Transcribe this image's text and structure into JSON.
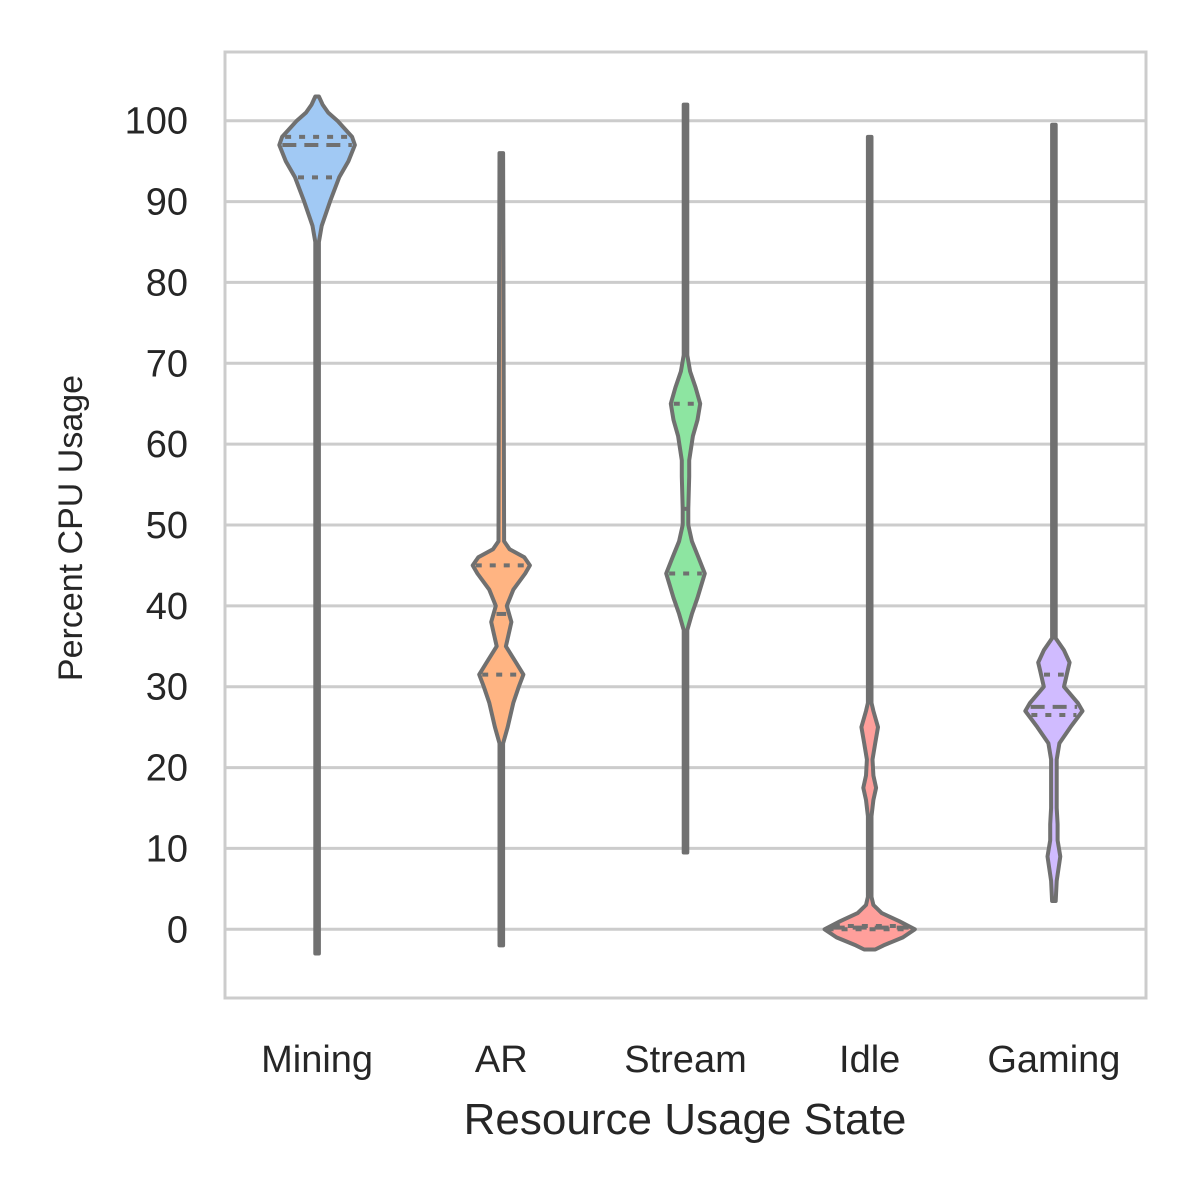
{
  "chart_data": {
    "type": "violin",
    "title": "",
    "xlabel": "Resource Usage State",
    "ylabel": "Percent CPU Usage",
    "ylim": [
      -8.5,
      108.5
    ],
    "yticks": [
      0,
      10,
      20,
      30,
      40,
      50,
      60,
      70,
      80,
      90,
      100
    ],
    "grid": "horizontal",
    "legend": "none",
    "inner": "quartile",
    "colors": {
      "Mining": "#a1c9f4",
      "AR": "#ffb482",
      "Stream": "#8de5a1",
      "Idle": "#ff9f9b",
      "Gaming": "#d0bbff",
      "outline": "#707070",
      "grid": "#cccccc"
    },
    "categories": [
      "Mining",
      "AR",
      "Stream",
      "Idle",
      "Gaming"
    ],
    "series": [
      {
        "category": "Mining",
        "range": [
          -3,
          103
        ],
        "quartiles": [
          93,
          97,
          98
        ],
        "density": [
          [
            -3,
            0.02
          ],
          [
            85,
            0.02
          ],
          [
            87,
            0.05
          ],
          [
            90,
            0.14
          ],
          [
            93,
            0.24
          ],
          [
            95,
            0.34
          ],
          [
            97,
            0.41
          ],
          [
            98,
            0.38
          ],
          [
            100,
            0.22
          ],
          [
            101,
            0.12
          ],
          [
            102,
            0.06
          ],
          [
            103,
            0.02
          ]
        ]
      },
      {
        "category": "AR",
        "range": [
          -2,
          96
        ],
        "quartiles": [
          31.5,
          39,
          45
        ],
        "density": [
          [
            -2,
            0.02
          ],
          [
            23,
            0.02
          ],
          [
            25,
            0.07
          ],
          [
            28,
            0.13
          ],
          [
            30,
            0.19
          ],
          [
            31.5,
            0.24
          ],
          [
            33,
            0.16
          ],
          [
            35,
            0.05
          ],
          [
            37,
            0.09
          ],
          [
            38,
            0.11
          ],
          [
            40,
            0.06
          ],
          [
            42,
            0.13
          ],
          [
            44,
            0.26
          ],
          [
            45,
            0.31
          ],
          [
            46,
            0.25
          ],
          [
            47,
            0.09
          ],
          [
            48,
            0.03
          ],
          [
            96,
            0.02
          ]
        ]
      },
      {
        "category": "Stream",
        "range": [
          9.5,
          102
        ],
        "quartiles": [
          44,
          52,
          65
        ],
        "density": [
          [
            9.5,
            0.02
          ],
          [
            37,
            0.02
          ],
          [
            39,
            0.07
          ],
          [
            41,
            0.13
          ],
          [
            44,
            0.21
          ],
          [
            46,
            0.14
          ],
          [
            48,
            0.07
          ],
          [
            50,
            0.03
          ],
          [
            52,
            0.03
          ],
          [
            56,
            0.04
          ],
          [
            58,
            0.04
          ],
          [
            61,
            0.08
          ],
          [
            63,
            0.13
          ],
          [
            65,
            0.16
          ],
          [
            67,
            0.11
          ],
          [
            69,
            0.05
          ],
          [
            71,
            0.02
          ],
          [
            102,
            0.02
          ]
        ]
      },
      {
        "category": "Idle",
        "range": [
          -2.5,
          98
        ],
        "quartiles": [
          0,
          0.2,
          0.4
        ],
        "density": [
          [
            -2.5,
            0.06
          ],
          [
            -2,
            0.15
          ],
          [
            -1,
            0.36
          ],
          [
            0,
            0.49
          ],
          [
            1,
            0.32
          ],
          [
            2,
            0.13
          ],
          [
            3,
            0.04
          ],
          [
            4,
            0.02
          ],
          [
            14,
            0.02
          ],
          [
            16,
            0.04
          ],
          [
            17.5,
            0.07
          ],
          [
            19,
            0.04
          ],
          [
            21,
            0.03
          ],
          [
            23,
            0.06
          ],
          [
            25,
            0.09
          ],
          [
            27,
            0.04
          ],
          [
            28,
            0.02
          ],
          [
            98,
            0.02
          ]
        ]
      },
      {
        "category": "Gaming",
        "range": [
          3.5,
          99.5
        ],
        "quartiles": [
          26.5,
          27.5,
          31.5
        ],
        "density": [
          [
            3.5,
            0.02
          ],
          [
            6,
            0.03
          ],
          [
            9,
            0.07
          ],
          [
            11,
            0.04
          ],
          [
            13,
            0.04
          ],
          [
            15,
            0.03
          ],
          [
            18,
            0.03
          ],
          [
            21,
            0.03
          ],
          [
            23,
            0.06
          ],
          [
            25,
            0.18
          ],
          [
            27,
            0.31
          ],
          [
            28,
            0.26
          ],
          [
            30,
            0.11
          ],
          [
            32,
            0.15
          ],
          [
            33,
            0.17
          ],
          [
            34.5,
            0.11
          ],
          [
            36,
            0.02
          ],
          [
            99.5,
            0.02
          ]
        ]
      }
    ]
  }
}
